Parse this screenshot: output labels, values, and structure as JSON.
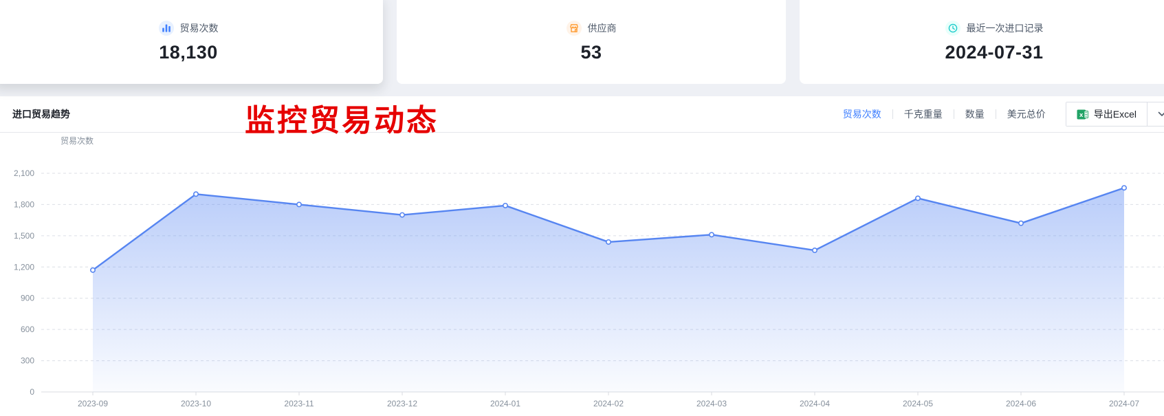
{
  "stats": [
    {
      "label": "贸易次数",
      "value": "18,130",
      "icon": "bar-chart-icon",
      "accent": "#4080ff",
      "accent_bg": "#e8f1ff"
    },
    {
      "label": "供应商",
      "value": "53",
      "icon": "storefront-icon",
      "accent": "#ff9a2e",
      "accent_bg": "#fff3e8"
    },
    {
      "label": "最近一次进口记录",
      "value": "2024-07-31",
      "icon": "clock-icon",
      "accent": "#14c9c9",
      "accent_bg": "#e8fffb"
    }
  ],
  "section": {
    "title": "进口贸易趋势",
    "tabs": [
      {
        "key": "trade-count",
        "label": "贸易次数",
        "active": true
      },
      {
        "key": "kg-weight",
        "label": "千克重量",
        "active": false
      },
      {
        "key": "quantity",
        "label": "数量",
        "active": false
      },
      {
        "key": "usd-total",
        "label": "美元总价",
        "active": false
      }
    ],
    "export_label": "导出Excel"
  },
  "watermark": "监控贸易动态",
  "colors": {
    "accent_blue": "#4080ff",
    "line": "#5685f1",
    "grid": "#dcdfe6",
    "axis_line": "#d8dbe0",
    "axis_text": "#86909c",
    "watermark_red": "#e60000",
    "excel_green": "#21a366"
  },
  "chart_data": {
    "type": "area",
    "title": "进口贸易趋势",
    "axis_name": "贸易次数",
    "series_name": "贸易次数",
    "categories": [
      "2023-09",
      "2023-10",
      "2023-11",
      "2023-12",
      "2024-01",
      "2024-02",
      "2024-03",
      "2024-04",
      "2024-05",
      "2024-06",
      "2024-07"
    ],
    "values": [
      1170,
      1900,
      1800,
      1700,
      1790,
      1440,
      1510,
      1360,
      1860,
      1620,
      1960
    ],
    "xlabel": "",
    "ylabel": "贸易次数",
    "ylim": [
      0,
      2100
    ],
    "ytick_step": 300,
    "grid": "dashed-horizontal",
    "legend_position": "none"
  }
}
